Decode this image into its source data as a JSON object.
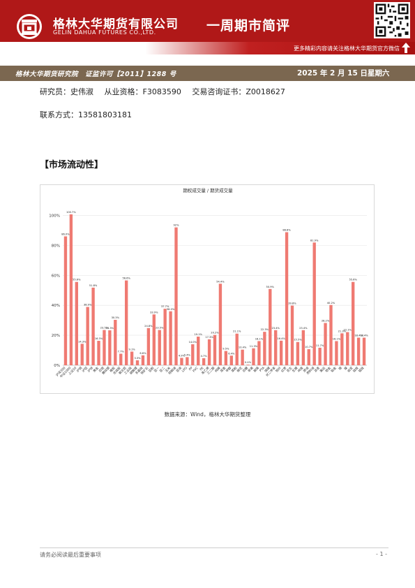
{
  "header": {
    "company_cn": "格林大华期货有限公司",
    "company_en": "GELIN DAHUA FUTURES CO.,LTD.",
    "report_type": "一周期市简评",
    "wechat_tip": "更多精彩内容请关注格林大华期货官方微信",
    "qr_icon": "qr-code-icon",
    "arrow_icon": "up-arrow-icon",
    "brand_color": "#b01818"
  },
  "info_bar": {
    "institute": "格林大华期货研究院　证监许可【2011】1288 号",
    "date": "2025 年 2 月 15 日星期六",
    "bar_color": "#7b6750"
  },
  "author": {
    "researcher": "研究员：史伟淑",
    "qualification": "从业资格：F3083590",
    "consult_cert": "交易咨询证书：Z0018627",
    "contact": "联系方式：13581803181"
  },
  "section": {
    "title": "【市场流动性】"
  },
  "chart_data": {
    "type": "bar",
    "title": "期权成交量 / 期货成交量",
    "bar_color": "#ef7a72",
    "ylim": [
      0,
      100
    ],
    "yticks": [
      "0%",
      "20%",
      "40%",
      "60%",
      "80%",
      "100%"
    ],
    "categories": [
      "沪深300",
      "中证1000",
      "上证50",
      "沪铜",
      "沪铝",
      "沪锌",
      "黄金",
      "白银",
      "螺纹钢",
      "橡胶",
      "合成胶",
      "氧化铝",
      "工业硅",
      "碳酸锂",
      "多晶硅",
      "铁矿石",
      "豆粕",
      "豆一",
      "豆二",
      "玉米",
      "棕榈油",
      "豆油",
      "LPG",
      "PP",
      "PVC",
      "PE",
      "苯乙烯",
      "乙二醇",
      "纯碱",
      "尿素",
      "甲醇",
      "菜粕",
      "棉花",
      "白糖",
      "苹果",
      "玻璃",
      "PTA",
      "烧碱",
      "对二甲苯",
      "短纤",
      "红枣",
      "花生",
      "生猪",
      "鸡蛋",
      "原油",
      "燃料油",
      "沥青",
      "集运",
      "钯金",
      "铂金",
      "锡",
      "镍",
      "纸浆",
      "硅铁",
      "锰硅"
    ],
    "values": [
      86.0,
      100.7,
      55.6,
      14.3,
      38.9,
      51.8,
      16.3,
      23.5,
      23.3,
      30.3,
      7.7,
      56.6,
      9.1,
      3.3,
      6.6,
      24.8,
      33.9,
      23.5,
      37.7,
      36.0,
      92.0,
      4.9,
      5.4,
      14.0,
      19.1,
      4.7,
      17.3,
      20.2,
      54.4,
      9.5,
      6.4,
      21.1,
      10.4,
      0.4,
      11.3,
      16.1,
      22.3,
      50.9,
      23.4,
      16.4,
      88.8,
      39.8,
      15.5,
      23.4,
      10.7,
      81.9,
      11.7,
      28.2,
      40.2,
      16.1,
      21.3,
      22.1,
      55.6,
      18.4,
      18.4
    ],
    "data_labels": [
      "86.0%",
      "100.7%",
      "55.6%",
      "14.3%",
      "38.9%",
      "51.8%",
      "16.3%",
      "23.5%",
      "23.3%",
      "30.3%",
      "7.7%",
      "56.6%",
      "9.1%",
      "3.3%",
      "6.6%",
      "24.8%",
      "33.9%",
      "23.5%",
      "37.7%",
      "36.0%",
      "92%",
      "4.9%",
      "5.4%",
      "14.0%",
      "19.1%",
      "4.7%",
      "17.3%",
      "20.2%",
      "54.4%",
      "9.5%",
      "6.4%",
      "21.1%",
      "10.4%",
      "0.4%",
      "11.3%",
      "16.1%",
      "22.3%",
      "50.9%",
      "23.4%",
      "16.4%",
      "88.8%",
      "39.8%",
      "15.5%",
      "23.4%",
      "10.7%",
      "81.9%",
      "11.7%",
      "28.2%",
      "40.2%",
      "16.1%",
      "21.3%",
      "22.1%",
      "55.6%",
      "18.4%",
      "18.4%"
    ],
    "grid": true,
    "legend": "none"
  },
  "source": "数据来源：Wind，格林大华期货整理",
  "footer": {
    "note": "请务必阅读最后重要事项",
    "page": "- 1 -"
  }
}
